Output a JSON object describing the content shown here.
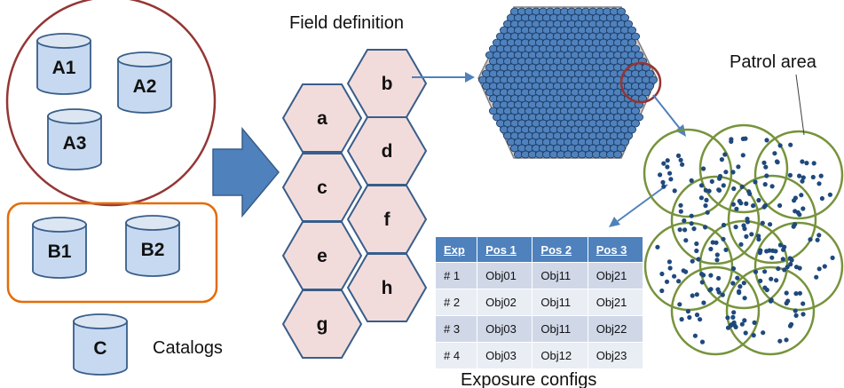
{
  "catalogs": {
    "group_a": [
      "A1",
      "A2",
      "A3"
    ],
    "group_b": [
      "B1",
      "B2"
    ],
    "standalone": "C",
    "caption": "Catalogs",
    "group_a_border_color": "#943634",
    "group_b_border_color": "#e36c09"
  },
  "field_definition": {
    "title": "Field definition",
    "fields": [
      "a",
      "b",
      "c",
      "d",
      "e",
      "f",
      "g",
      "h"
    ],
    "fill_color": "#f2dcdb",
    "stroke_color": "#385d8a"
  },
  "patrol": {
    "label": "Patrol area",
    "circle_color": "#77933c",
    "dot_color": "#1f497d"
  },
  "exposure": {
    "caption": "Exposure configs",
    "columns": [
      "Exp",
      "Pos 1",
      "Pos 2",
      "Pos 3"
    ],
    "rows": [
      [
        "# 1",
        "Obj01",
        "Obj11",
        "Obj21"
      ],
      [
        "# 2",
        "Obj02",
        "Obj11",
        "Obj21"
      ],
      [
        "# 3",
        "Obj03",
        "Obj11",
        "Obj22"
      ],
      [
        "# 4",
        "Obj03",
        "Obj12",
        "Obj23"
      ]
    ],
    "header_color": "#4f81bd"
  },
  "colors": {
    "cylinder_fill": "#c6d9f1",
    "cylinder_stroke": "#385d8a",
    "arrow": "#4f81bd"
  }
}
